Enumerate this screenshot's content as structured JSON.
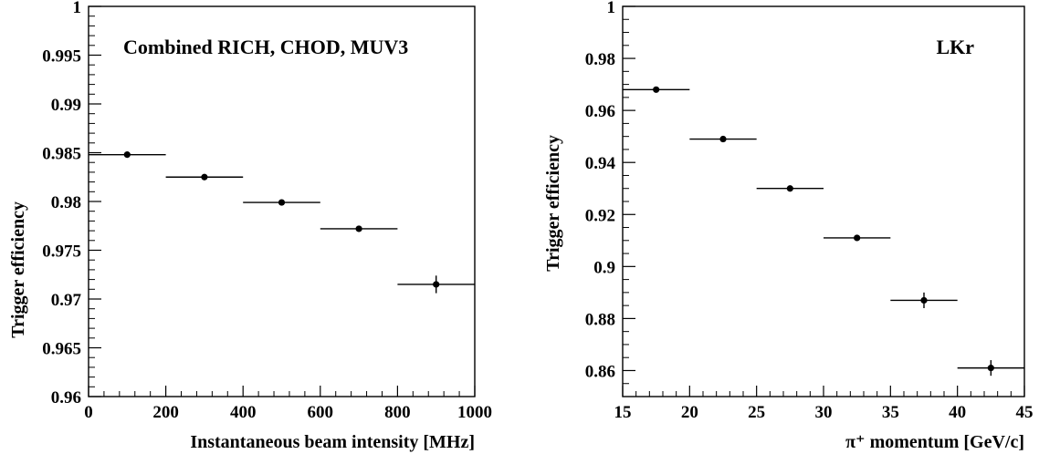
{
  "chart_data": [
    {
      "type": "scatter",
      "title": "",
      "annotation": "Combined RICH, CHOD, MUV3",
      "xlabel": "Instantaneous beam intensity [MHz]",
      "ylabel": "Trigger efficiency",
      "xlim": [
        0,
        1000
      ],
      "ylim": [
        0.96,
        1.0
      ],
      "xticks": [
        0,
        200,
        400,
        600,
        800,
        1000
      ],
      "xtick_labels": [
        "0",
        "200",
        "400",
        "600",
        "800",
        "1000"
      ],
      "yticks": [
        0.96,
        0.965,
        0.97,
        0.975,
        0.98,
        0.985,
        0.99,
        0.995,
        1.0
      ],
      "ytick_labels": [
        "0.96",
        "0.965",
        "0.97",
        "0.975",
        "0.98",
        "0.985",
        "0.99",
        "0.995",
        "1"
      ],
      "grid": false,
      "points": [
        {
          "x": 100,
          "y": 0.9848,
          "xlo": 0,
          "xhi": 200,
          "ylo": 0.9846,
          "yhi": 0.985
        },
        {
          "x": 300,
          "y": 0.9825,
          "xlo": 200,
          "xhi": 400,
          "ylo": 0.9823,
          "yhi": 0.9827
        },
        {
          "x": 500,
          "y": 0.9799,
          "xlo": 400,
          "xhi": 600,
          "ylo": 0.9797,
          "yhi": 0.9801
        },
        {
          "x": 700,
          "y": 0.9772,
          "xlo": 600,
          "xhi": 800,
          "ylo": 0.9769,
          "yhi": 0.9775
        },
        {
          "x": 900,
          "y": 0.9715,
          "xlo": 800,
          "xhi": 1000,
          "ylo": 0.9706,
          "yhi": 0.9724
        }
      ]
    },
    {
      "type": "scatter",
      "title": "",
      "annotation": "LKr",
      "xlabel": "π⁺ momentum [GeV/c]",
      "ylabel": "Trigger efficiency",
      "xlim": [
        15,
        45
      ],
      "ylim": [
        0.85,
        1.0
      ],
      "xticks": [
        15,
        20,
        25,
        30,
        35,
        40,
        45
      ],
      "xtick_labels": [
        "15",
        "20",
        "25",
        "30",
        "35",
        "40",
        "45"
      ],
      "yticks": [
        0.86,
        0.88,
        0.9,
        0.92,
        0.94,
        0.96,
        0.98,
        1.0
      ],
      "ytick_labels": [
        "0.86",
        "0.88",
        "0.9",
        "0.92",
        "0.94",
        "0.96",
        "0.98",
        "1"
      ],
      "grid": false,
      "points": [
        {
          "x": 17.5,
          "y": 0.968,
          "xlo": 15,
          "xhi": 20,
          "ylo": 0.967,
          "yhi": 0.969
        },
        {
          "x": 22.5,
          "y": 0.949,
          "xlo": 20,
          "xhi": 25,
          "ylo": 0.948,
          "yhi": 0.95
        },
        {
          "x": 27.5,
          "y": 0.93,
          "xlo": 25,
          "xhi": 30,
          "ylo": 0.929,
          "yhi": 0.931
        },
        {
          "x": 32.5,
          "y": 0.911,
          "xlo": 30,
          "xhi": 35,
          "ylo": 0.9102,
          "yhi": 0.9118
        },
        {
          "x": 37.5,
          "y": 0.887,
          "xlo": 35,
          "xhi": 40,
          "ylo": 0.884,
          "yhi": 0.89
        },
        {
          "x": 42.5,
          "y": 0.861,
          "xlo": 40,
          "xhi": 45,
          "ylo": 0.858,
          "yhi": 0.864
        }
      ]
    }
  ]
}
